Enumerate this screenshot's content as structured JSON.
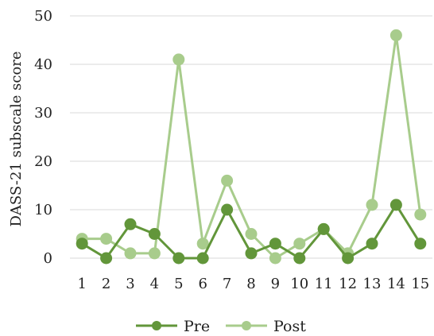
{
  "chart_data": {
    "type": "line",
    "ylabel": "DASS-21 subscale score",
    "xlabel": "",
    "ylim": [
      0,
      50
    ],
    "yticks": [
      0,
      10,
      20,
      30,
      40,
      50
    ],
    "x": [
      "1",
      "2",
      "3",
      "4",
      "5",
      "6",
      "7",
      "8",
      "9",
      "10",
      "11",
      "12",
      "13",
      "14",
      "15"
    ],
    "grid": "horizontal",
    "legend_position": "bottom",
    "series": [
      {
        "name": "Pre",
        "color": "#62963a",
        "values": [
          3,
          0,
          7,
          5,
          0,
          0,
          10,
          1,
          3,
          0,
          6,
          0,
          3,
          11,
          3
        ]
      },
      {
        "name": "Post",
        "color": "#a8cc8c",
        "values": [
          4,
          4,
          1,
          1,
          41,
          3,
          16,
          5,
          0,
          3,
          6,
          1,
          11,
          46,
          9
        ]
      }
    ]
  }
}
